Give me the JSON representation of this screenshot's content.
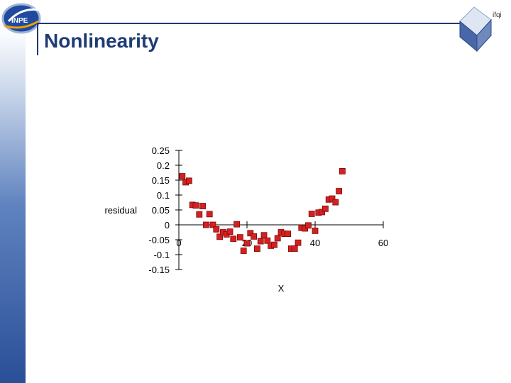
{
  "header": {
    "title": "Nonlinearity",
    "logo_text": "INPE",
    "corner_text": "ifqi"
  },
  "colors": {
    "title": "#1f3b73",
    "marker_fill": "#d62020",
    "marker_stroke": "#7a0a0a"
  },
  "chart_data": {
    "type": "scatter",
    "xlabel": "X",
    "ylabel": "residual",
    "xlim": [
      0,
      60
    ],
    "ylim": [
      -0.15,
      0.25
    ],
    "x_ticks": [
      "0",
      "20",
      "40",
      "60"
    ],
    "y_ticks": [
      "0.25",
      "0.2",
      "0.15",
      "0.1",
      "0.05",
      "0",
      "-0.05",
      "-0.1",
      "-0.15"
    ],
    "points": [
      [
        1,
        0.163
      ],
      [
        2,
        0.143
      ],
      [
        3,
        0.148
      ],
      [
        4,
        0.067
      ],
      [
        5,
        0.065
      ],
      [
        6,
        0.035
      ],
      [
        7,
        0.063
      ],
      [
        8,
        0.0
      ],
      [
        9,
        0.036
      ],
      [
        10,
        0.0
      ],
      [
        11,
        -0.015
      ],
      [
        12,
        -0.04
      ],
      [
        13,
        -0.025
      ],
      [
        14,
        -0.032
      ],
      [
        15,
        -0.023
      ],
      [
        16,
        -0.047
      ],
      [
        17,
        0.002
      ],
      [
        18,
        -0.042
      ],
      [
        19,
        -0.087
      ],
      [
        20,
        -0.062
      ],
      [
        21,
        -0.028
      ],
      [
        22,
        -0.039
      ],
      [
        23,
        -0.08
      ],
      [
        24,
        -0.055
      ],
      [
        25,
        -0.035
      ],
      [
        26,
        -0.053
      ],
      [
        27,
        -0.07
      ],
      [
        28,
        -0.067
      ],
      [
        29,
        -0.045
      ],
      [
        30,
        -0.025
      ],
      [
        31,
        -0.03
      ],
      [
        32,
        -0.03
      ],
      [
        33,
        -0.08
      ],
      [
        34,
        -0.08
      ],
      [
        35,
        -0.06
      ],
      [
        36,
        -0.01
      ],
      [
        37,
        -0.012
      ],
      [
        38,
        -0.002
      ],
      [
        39,
        0.037
      ],
      [
        40,
        -0.02
      ],
      [
        41,
        0.041
      ],
      [
        42,
        0.043
      ],
      [
        43,
        0.054
      ],
      [
        44,
        0.085
      ],
      [
        45,
        0.088
      ],
      [
        46,
        0.076
      ],
      [
        47,
        0.113
      ],
      [
        48,
        0.18
      ]
    ]
  }
}
